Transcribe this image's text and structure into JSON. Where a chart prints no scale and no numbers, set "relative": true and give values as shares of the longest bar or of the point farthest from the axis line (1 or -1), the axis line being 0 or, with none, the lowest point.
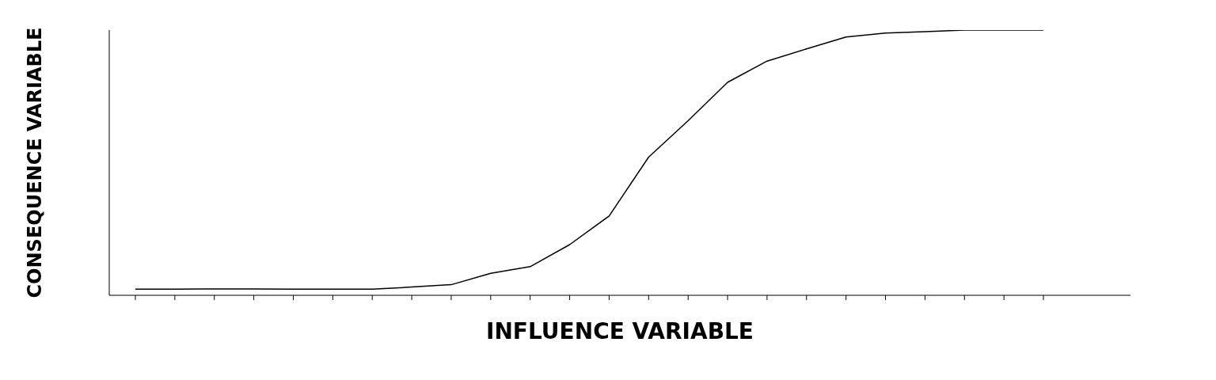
{
  "chart_data": {
    "type": "line",
    "relative": true,
    "xlabel": "INFLUENCE VARIABLE",
    "ylabel": "CONSEQUENCE VARIABLE",
    "categories": [
      null,
      null,
      null,
      null,
      null,
      null,
      null,
      null,
      null,
      null,
      null,
      null,
      null,
      null,
      null,
      null,
      null,
      null,
      null,
      null,
      null,
      null,
      null,
      null
    ],
    "series": [
      {
        "color": "#000000",
        "values": [
          0.023,
          0.023,
          0.024,
          0.024,
          0.023,
          0.023,
          0.023,
          0.031,
          0.04,
          0.083,
          0.108,
          0.191,
          0.299,
          0.521,
          0.658,
          0.803,
          0.883,
          0.929,
          0.974,
          0.989,
          0.994,
          1,
          1,
          1
        ]
      }
    ],
    "grid": false,
    "legend": false,
    "marker": "none",
    "line_style": "solid"
  }
}
